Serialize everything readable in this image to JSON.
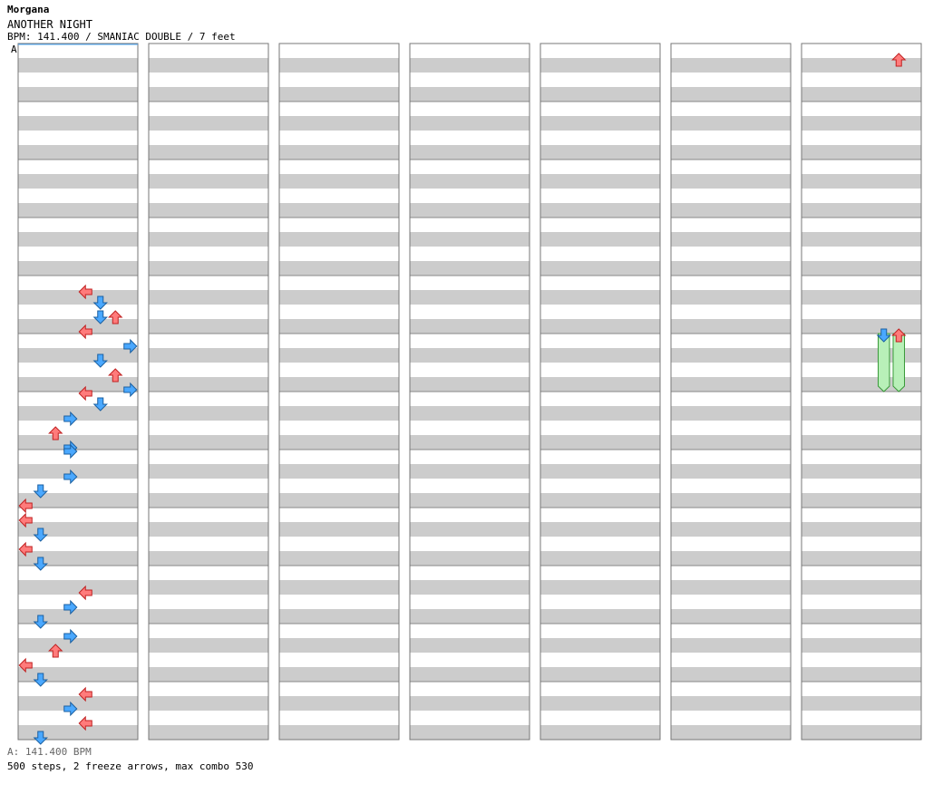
{
  "header": {
    "artist": "Morgana",
    "title": "ANOTHER NIGHT",
    "info": "BPM: 141.400 / SMANIAC DOUBLE / 7 feet"
  },
  "footer": {
    "bpm_line": "A: 141.400 BPM",
    "stats_line": "500 steps, 2 freeze arrows, max combo 530"
  },
  "chart_data": {
    "type": "step-chart",
    "columns": 7,
    "measures_per_column": 12,
    "lanes": 8,
    "marker_label": "A",
    "lane_colors": [
      "#ff7b7b",
      "#4aa8ff",
      "#ff7b7b",
      "#4aa8ff",
      "#ff7b7b",
      "#4aa8ff",
      "#ff7b7b",
      "#4aa8ff"
    ],
    "lane_directions": [
      "left",
      "down",
      "up",
      "right",
      "left",
      "down",
      "up",
      "right"
    ],
    "freeze_color": "#b8f0b8",
    "special_color": "#f0a0f0",
    "freezes": [
      {
        "column": 6,
        "lane": 5,
        "start_measure": 5.0,
        "end_measure": 6.0
      },
      {
        "column": 6,
        "lane": 6,
        "start_measure": 5.0,
        "end_measure": 6.0
      }
    ],
    "note_rows": [
      [
        [],
        [],
        [],
        [],
        [],
        [],
        [],
        [],
        [],
        [],
        [],
        [],
        [],
        [],
        [],
        [],
        [],
        [],
        [],
        [],
        [],
        [],
        [],
        [],
        [],
        [],
        [],
        [],
        [],
        [],
        [],
        [],
        [],
        [],
        [],
        [],
        [],
        [],
        [],
        [],
        [],
        [],
        [],
        [],
        [],
        [],
        [],
        [],
        [],
        [],
        [],
        [],
        [],
        [],
        [],
        [],
        [],
        [],
        [],
        [],
        [],
        [],
        [],
        [],
        [],
        [],
        [],
        [],
        [
          4
        ],
        [],
        [],
        [
          5
        ],
        [],
        [],
        [],
        [
          5,
          6
        ],
        [],
        [],
        [],
        [
          4
        ],
        [],
        [],
        [],
        [
          7
        ],
        [],
        [],
        [],
        [
          5
        ],
        [],
        [],
        [],
        [
          6
        ],
        [],
        [],
        [],
        [
          7
        ],
        [
          4
        ],
        [],
        [],
        [
          5
        ],
        [],
        [],
        [],
        [
          3
        ],
        [],
        [],
        [],
        [
          2
        ],
        [],
        [],
        [],
        [
          3
        ],
        [
          3
        ],
        [],
        [],
        [],
        [],
        [],
        [],
        [
          3
        ],
        [],
        [],
        [],
        [
          1
        ],
        [],
        [],
        [],
        [
          0
        ],
        [],
        [],
        [],
        [
          0
        ],
        [],
        [],
        [],
        [
          1
        ],
        [],
        [],
        [],
        [
          0
        ],
        [],
        [],
        [],
        [
          1
        ],
        [],
        [],
        [],
        [],
        [],
        [],
        [],
        [
          4
        ],
        [],
        [],
        [],
        [
          3
        ],
        [],
        [],
        [],
        [
          1
        ],
        [],
        [],
        [],
        [
          3
        ],
        [],
        [],
        [],
        [
          2
        ],
        [],
        [],
        [],
        [
          0
        ],
        [],
        [],
        [],
        [
          1
        ],
        [],
        [],
        [],
        [
          4
        ],
        [],
        [],
        [],
        [
          3
        ],
        [],
        [],
        [],
        [
          4
        ],
        [],
        [],
        [],
        [
          1
        ]
      ],
      [],
      [],
      [],
      [],
      [],
      [
        [],
        [],
        [],
        [],
        [
          6
        ],
        [],
        [],
        [],
        [],
        [],
        [],
        [],
        [],
        [],
        [],
        [],
        [],
        [],
        [],
        [],
        [],
        [],
        [],
        [],
        [],
        [],
        [],
        [],
        [],
        [],
        [],
        [],
        [],
        [],
        [],
        [],
        [],
        [],
        [],
        [],
        [],
        [],
        [],
        [],
        [],
        [],
        [],
        [],
        [],
        [],
        [],
        [],
        [],
        [],
        [],
        [],
        [],
        [],
        [],
        [],
        [],
        [],
        [],
        [],
        [],
        [],
        [],
        [],
        [],
        [],
        [],
        [],
        [],
        [],
        [],
        [],
        [],
        [],
        [],
        [],
        [
          5,
          6
        ],
        [],
        [],
        [],
        [],
        [],
        [],
        [],
        [],
        [],
        [],
        [],
        [],
        [],
        [],
        []
      ]
    ]
  }
}
